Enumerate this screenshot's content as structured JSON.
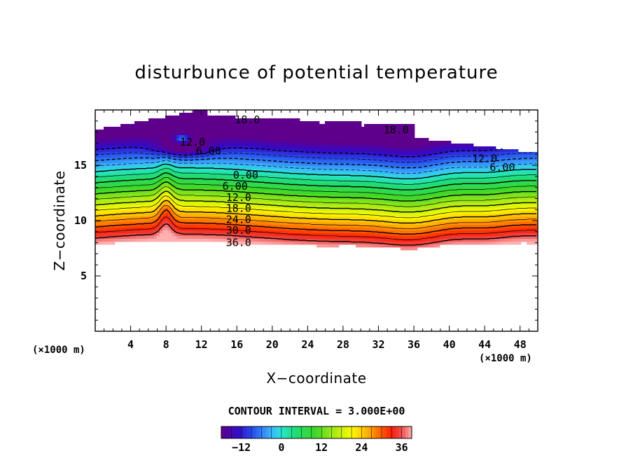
{
  "chart_data": {
    "type": "contour",
    "title": "disturbunce of potential temperature",
    "xlabel": "X−coordinate",
    "ylabel": "Z−coordinate",
    "x_unit": "(×1000 m)",
    "y_unit": "(×1000 m)",
    "xlim": [
      0,
      50
    ],
    "ylim": [
      0,
      20
    ],
    "x_ticks": [
      4,
      8,
      12,
      16,
      20,
      24,
      28,
      32,
      36,
      40,
      44,
      48
    ],
    "x_tick_labels": [
      "4",
      "8",
      "12",
      "16",
      "20",
      "24",
      "28",
      "32",
      "36",
      "40",
      "44",
      "48"
    ],
    "y_ticks": [
      5,
      10,
      15
    ],
    "y_tick_labels": [
      "5",
      "10",
      "15"
    ],
    "contour_interval_text": "CONTOUR INTERVAL = 3.000E+00",
    "contour_interval": 3.0,
    "color_range": [
      -18,
      39
    ],
    "contour_labels": [
      {
        "text": "18.0",
        "x": 17.2,
        "z": 19.1
      },
      {
        "text": "18.0",
        "x": 34.0,
        "z": 18.2
      },
      {
        "text": "12.0",
        "x": 11.0,
        "z": 17.1
      },
      {
        "text": "6.00",
        "x": 12.8,
        "z": 16.3
      },
      {
        "text": "12.0",
        "x": 44.0,
        "z": 15.6
      },
      {
        "text": "6.00",
        "x": 46.0,
        "z": 14.8
      },
      {
        "text": "0.00",
        "x": 17.0,
        "z": 14.1
      },
      {
        "text": "6.00",
        "x": 15.8,
        "z": 13.1
      },
      {
        "text": "12.0",
        "x": 16.2,
        "z": 12.1
      },
      {
        "text": "18.0",
        "x": 16.2,
        "z": 11.1
      },
      {
        "text": "24.0",
        "x": 16.2,
        "z": 10.1
      },
      {
        "text": "30.0",
        "x": 16.2,
        "z": 9.1
      },
      {
        "text": "36.0",
        "x": 16.2,
        "z": 8.0
      }
    ],
    "colorbar": {
      "tick_values": [
        -12,
        0,
        12,
        24,
        36
      ],
      "tick_labels": [
        "−12",
        "0",
        "12",
        "24",
        "36"
      ]
    }
  }
}
